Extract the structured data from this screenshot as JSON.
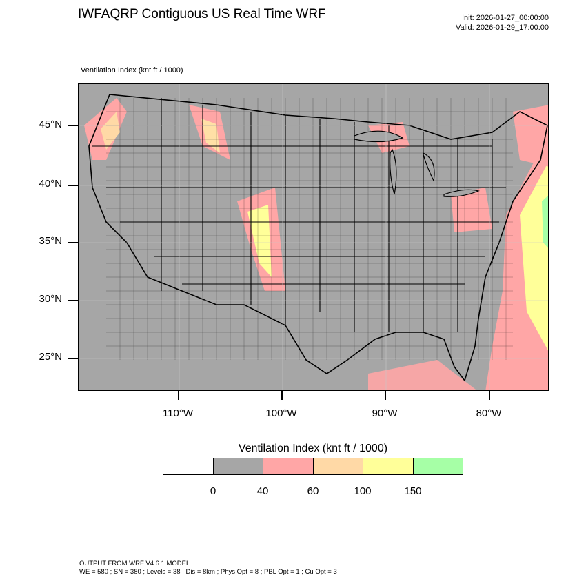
{
  "title": "IWFAQRP Contiguous US Real Time WRF",
  "init": "Init: 2026-01-27_00:00:00",
  "valid": "Valid: 2026-01-29_17:00:00",
  "field_label": "Ventilation Index   (knt ft / 1000)",
  "lat_labels": [
    "45°N",
    "40°N",
    "35°N",
    "30°N",
    "25°N"
  ],
  "lon_labels": [
    "110°W",
    "100°W",
    "90°W",
    "80°W"
  ],
  "legend": {
    "title": "Ventilation Index  (knt ft / 1000)",
    "colors": [
      "#ffffff",
      "#a6a6a6",
      "#ffa6a6",
      "#ffd9a6",
      "#ffff99",
      "#a6ffa6"
    ],
    "labels": [
      "0",
      "40",
      "60",
      "100",
      "150"
    ]
  },
  "footer": {
    "line1": "OUTPUT FROM WRF V4.6.1 MODEL",
    "line2": "WE = 580 ; SN = 380 ; Levels = 38 ; Dis = 8km ; Phys Opt = 8 ; PBL Opt = 1 ; Cu Opt = 3"
  }
}
